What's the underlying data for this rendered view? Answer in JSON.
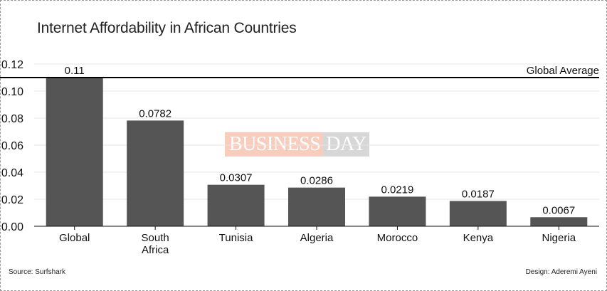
{
  "chart_data": {
    "type": "bar",
    "title": "Internet Affordability in African Countries",
    "categories": [
      "Global",
      "South Africa",
      "Tunisia",
      "Algeria",
      "Morocco",
      "Kenya",
      "Nigeria"
    ],
    "category_lines": [
      [
        "Global"
      ],
      [
        "South",
        "Africa"
      ],
      [
        "Tunisia"
      ],
      [
        "Algeria"
      ],
      [
        "Morocco"
      ],
      [
        "Kenya"
      ],
      [
        "Nigeria"
      ]
    ],
    "values": [
      0.11,
      0.0782,
      0.0307,
      0.0286,
      0.0219,
      0.0187,
      0.0067
    ],
    "value_labels": [
      "0.11",
      "0.0782",
      "0.0307",
      "0.0286",
      "0.0219",
      "0.0187",
      "0.0067"
    ],
    "ylim": [
      0,
      0.12
    ],
    "yticks": [
      "0.00",
      "0.02",
      "0.04",
      "0.06",
      "0.08",
      "0.10",
      "0.12"
    ],
    "reference_line": {
      "label": "Global Average",
      "value": 0.11
    },
    "grid": true,
    "bar_color": "#555555"
  },
  "footer": {
    "source": "Source: Surfshark",
    "design": "Design: Aderemi Ayeni"
  },
  "watermark": {
    "part1": "BUSINESS",
    "part2": "DAY"
  }
}
